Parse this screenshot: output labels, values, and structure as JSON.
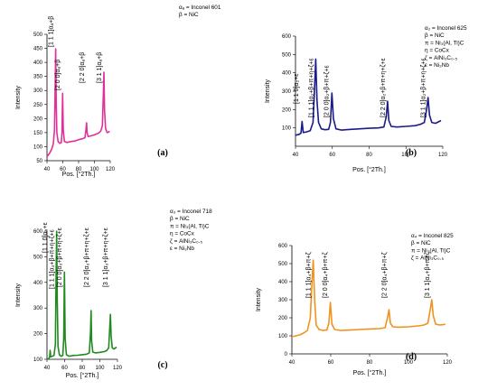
{
  "chart_data": [
    {
      "type": "line",
      "panel_label": "(a)",
      "color": "#e0309a",
      "xlabel": "Pos. [°2Th.]",
      "ylabel": "Intensity",
      "xlim": [
        40,
        120
      ],
      "ylim": [
        50,
        500
      ],
      "x_ticks": [
        40,
        60,
        80,
        100,
        120
      ],
      "y_ticks": [
        50,
        100,
        150,
        200,
        250,
        300,
        350,
        400,
        450,
        500
      ],
      "legend": [
        "αₐ = Inconel 601",
        "β = NiC"
      ],
      "peak_labels": [
        {
          "x": 51,
          "text": "[1 1 1]αₐ+β"
        },
        {
          "x": 59.5,
          "text": "[2 0 0]αₐ+β"
        },
        {
          "x": 90,
          "text": "[2 2 0]αₐ+β"
        },
        {
          "x": 112,
          "text": "[3 1 1]αₐ+β"
        }
      ],
      "x": [
        40,
        42,
        44,
        46,
        48,
        49.5,
        50.3,
        51,
        51.7,
        52.5,
        54,
        56,
        58,
        59,
        59.8,
        60.6,
        62,
        65,
        70,
        75,
        80,
        85,
        88,
        89.3,
        90,
        90.7,
        92,
        95,
        100,
        105,
        108,
        110,
        111.2,
        112,
        112.8,
        114,
        116,
        118,
        119
      ],
      "y": [
        65,
        72,
        80,
        92,
        110,
        160,
        300,
        448,
        260,
        150,
        118,
        112,
        114,
        150,
        290,
        160,
        118,
        115,
        118,
        120,
        125,
        128,
        132,
        160,
        185,
        150,
        136,
        138,
        142,
        148,
        155,
        175,
        280,
        365,
        230,
        165,
        150,
        152,
        155
      ]
    },
    {
      "type": "line",
      "panel_label": "(b)",
      "color": "#1a1a8c",
      "xlabel": "Pos. [°2Th.]",
      "ylabel": "Intensity",
      "xlim": [
        40,
        120
      ],
      "ylim": [
        0,
        600
      ],
      "x_ticks": [
        40,
        60,
        80,
        100,
        120
      ],
      "y_ticks": [
        100,
        200,
        300,
        400,
        500,
        600
      ],
      "legend": [
        "α₂ = Inconel 625",
        "β = NiC",
        "π = Ni₃(Al, Ti)C",
        "η = CoCx",
        "ζ = AlNi₃C₀.₅",
        "ε = Ni₃Nb"
      ],
      "peak_labels": [
        {
          "x": 43,
          "text": "[1 1 0]α₂+ε"
        },
        {
          "x": 51,
          "text": "[1 1 1]α₂+β+π+η+ζ+ε"
        },
        {
          "x": 59.5,
          "text": "[2 0 0]α₂+β+π+ζ+ε"
        },
        {
          "x": 90,
          "text": "[2 2 0]α₂+β+π+η+ζ+ε"
        },
        {
          "x": 112,
          "text": "[3 1 1]α₂+β+π+η+ζ+ε"
        }
      ],
      "x": [
        40,
        42,
        43,
        43.6,
        44.2,
        46,
        48,
        49.5,
        50.3,
        51,
        51.7,
        52.5,
        54,
        56,
        58,
        59,
        59.8,
        60.6,
        62,
        65,
        70,
        75,
        80,
        85,
        88,
        89.3,
        90,
        90.7,
        92,
        95,
        100,
        105,
        108,
        110,
        111.2,
        112,
        112.8,
        114,
        116,
        118,
        119
      ],
      "y": [
        60,
        65,
        72,
        135,
        75,
        78,
        85,
        130,
        300,
        475,
        250,
        130,
        95,
        90,
        92,
        130,
        290,
        150,
        95,
        88,
        92,
        95,
        98,
        100,
        105,
        160,
        245,
        140,
        108,
        105,
        108,
        112,
        120,
        130,
        200,
        265,
        170,
        130,
        125,
        135,
        140
      ]
    },
    {
      "type": "line",
      "panel_label": "(c)",
      "color": "#1f8a1f",
      "xlabel": "Pos. [°2Th.]",
      "ylabel": "Intensity",
      "xlim": [
        40,
        120
      ],
      "ylim": [
        100,
        600
      ],
      "x_ticks": [
        40,
        60,
        80,
        100,
        120
      ],
      "y_ticks": [
        100,
        200,
        300,
        400,
        500,
        600
      ],
      "legend": [
        "α₃ = Inconel 718",
        "β = NiC",
        "π = Ni₃(Al, Ti)C",
        "η = CoCx",
        "ζ = AlNi₃C₀.₅",
        "ε = Ni₃Nb"
      ],
      "peak_labels": [
        {
          "x": 43,
          "text": "[1 1 0]α₃+ε"
        },
        {
          "x": 51,
          "text": "[1 1 1]α₃+β+π+η+ζ+ε"
        },
        {
          "x": 59.5,
          "text": "[2 0 0]α₃+β+π+η+ζ+ε"
        },
        {
          "x": 90,
          "text": "[2 2 0]α₃+β+π+η+ζ+ε"
        },
        {
          "x": 112,
          "text": "[3 1 1]α₃+β+π+η+ζ+ε"
        }
      ],
      "x": [
        40,
        42,
        43,
        43.6,
        44.2,
        46,
        48,
        49.5,
        50.3,
        51,
        51.7,
        52.5,
        54,
        56,
        58,
        59,
        59.8,
        60.6,
        62,
        65,
        70,
        75,
        80,
        85,
        88,
        89.3,
        90,
        90.7,
        92,
        95,
        100,
        105,
        108,
        110,
        111.2,
        112,
        112.8,
        114,
        116,
        118,
        119
      ],
      "y": [
        100,
        103,
        108,
        135,
        110,
        112,
        115,
        160,
        400,
        600,
        320,
        150,
        118,
        112,
        115,
        180,
        440,
        180,
        118,
        112,
        115,
        116,
        118,
        120,
        125,
        200,
        290,
        170,
        128,
        125,
        127,
        130,
        135,
        145,
        220,
        275,
        190,
        145,
        140,
        145,
        148
      ]
    },
    {
      "type": "line",
      "panel_label": "(d)",
      "color": "#f0921e",
      "xlabel": "Pos. [°2Th.]",
      "ylabel": "Intensity",
      "xlim": [
        40,
        120
      ],
      "ylim": [
        0,
        600
      ],
      "x_ticks": [
        40,
        60,
        80,
        100,
        120
      ],
      "y_ticks": [
        0,
        100,
        200,
        300,
        400,
        500,
        600
      ],
      "legend": [
        "α₄ = Inconel 825",
        "β = NiC",
        "π = Ni₃(Al, Ti)C",
        "ζ = AlNi₃C₀.₅"
      ],
      "peak_labels": [
        {
          "x": 51,
          "text": "[1 1 1]α₄+β+π+ζ"
        },
        {
          "x": 59.5,
          "text": "[2 0 0]α₄+β+π+ζ"
        },
        {
          "x": 90,
          "text": "[2 2 0]α₄+β+π+ζ"
        },
        {
          "x": 112,
          "text": "[3 1 1]α₄+β+π+ζ"
        }
      ],
      "x": [
        40,
        42,
        44,
        46,
        48,
        49.5,
        50.3,
        51,
        51.7,
        52.5,
        54,
        56,
        58,
        59,
        59.8,
        60.6,
        62,
        65,
        70,
        75,
        80,
        85,
        88,
        89.3,
        90,
        90.7,
        92,
        95,
        100,
        105,
        108,
        110,
        111.2,
        112,
        112.8,
        114,
        116,
        118,
        119
      ],
      "y": [
        95,
        100,
        105,
        115,
        130,
        200,
        380,
        520,
        300,
        160,
        135,
        130,
        132,
        170,
        285,
        165,
        135,
        130,
        132,
        135,
        138,
        140,
        145,
        205,
        245,
        170,
        150,
        148,
        150,
        155,
        160,
        170,
        245,
        300,
        210,
        165,
        160,
        162,
        165
      ]
    }
  ]
}
